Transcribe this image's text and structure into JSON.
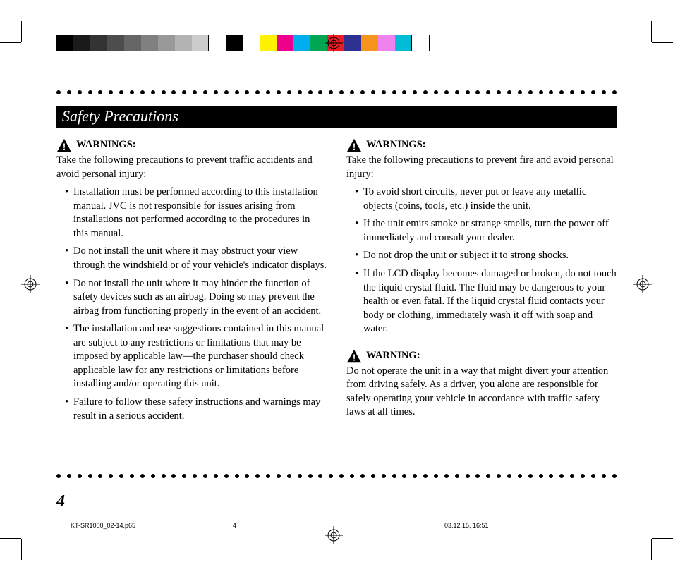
{
  "colorBar": [
    "#000000",
    "#1a1a1a",
    "#333333",
    "#4d4d4d",
    "#666666",
    "#808080",
    "#999999",
    "#b3b3b3",
    "#cccccc",
    "#ffffff",
    "#000000",
    "#ffffff",
    "#fff200",
    "#ec008c",
    "#00aeef",
    "#00a651",
    "#ed1c24",
    "#2e3192",
    "#f7941d",
    "#ee82ee",
    "#00bcd4",
    "#ffffff"
  ],
  "colorBarBorderIndices": [
    9,
    11,
    21
  ],
  "sectionTitle": "Safety Precautions",
  "left": {
    "warn1": {
      "label": "WARNINGS:",
      "intro": "Take the following precautions to prevent traffic accidents and avoid personal injury:",
      "items": [
        "Installation must be performed according to this installation manual. JVC is not responsible for issues arising from installations not performed according to the procedures in this manual.",
        "Do not install the unit where it may obstruct your view through the windshield or of your vehicle's indicator displays.",
        "Do not install the unit where it may hinder the function of safety devices such as an airbag. Doing so may prevent the airbag from functioning properly in the event of an accident.",
        "The installation and use suggestions contained in this manual are subject to any restrictions or limitations that may be imposed by applicable law—the purchaser should check applicable law for any restrictions or limitations before installing and/or operating this unit.",
        "Failure to follow these safety instructions and warnings may result in a serious accident."
      ]
    }
  },
  "right": {
    "warn1": {
      "label": "WARNINGS:",
      "intro": "Take the following precautions to prevent fire and avoid personal injury:",
      "items": [
        "To avoid short circuits, never put or leave any metallic objects (coins, tools, etc.) inside the unit.",
        "If the unit emits smoke or strange smells, turn the power off immediately and consult your dealer.",
        "Do not drop the unit or subject it to strong shocks.",
        "If the LCD display becomes damaged or broken, do not touch the liquid crystal fluid. The fluid may be dangerous to your health or even fatal. If the liquid crystal fluid contacts your body or clothing, immediately wash it off with soap and water."
      ]
    },
    "warn2": {
      "label": "WARNING:",
      "intro": "Do not operate the unit in a way that might divert your attention from driving safely. As a driver, you alone are responsible for safely operating your vehicle in accordance with traffic safety laws at all times."
    }
  },
  "pageNumber": "4",
  "footer": {
    "file": "KT-SR1000_02-14.p65",
    "page": "4",
    "datetime": "03.12.15, 16:51"
  },
  "dotCount": 54
}
